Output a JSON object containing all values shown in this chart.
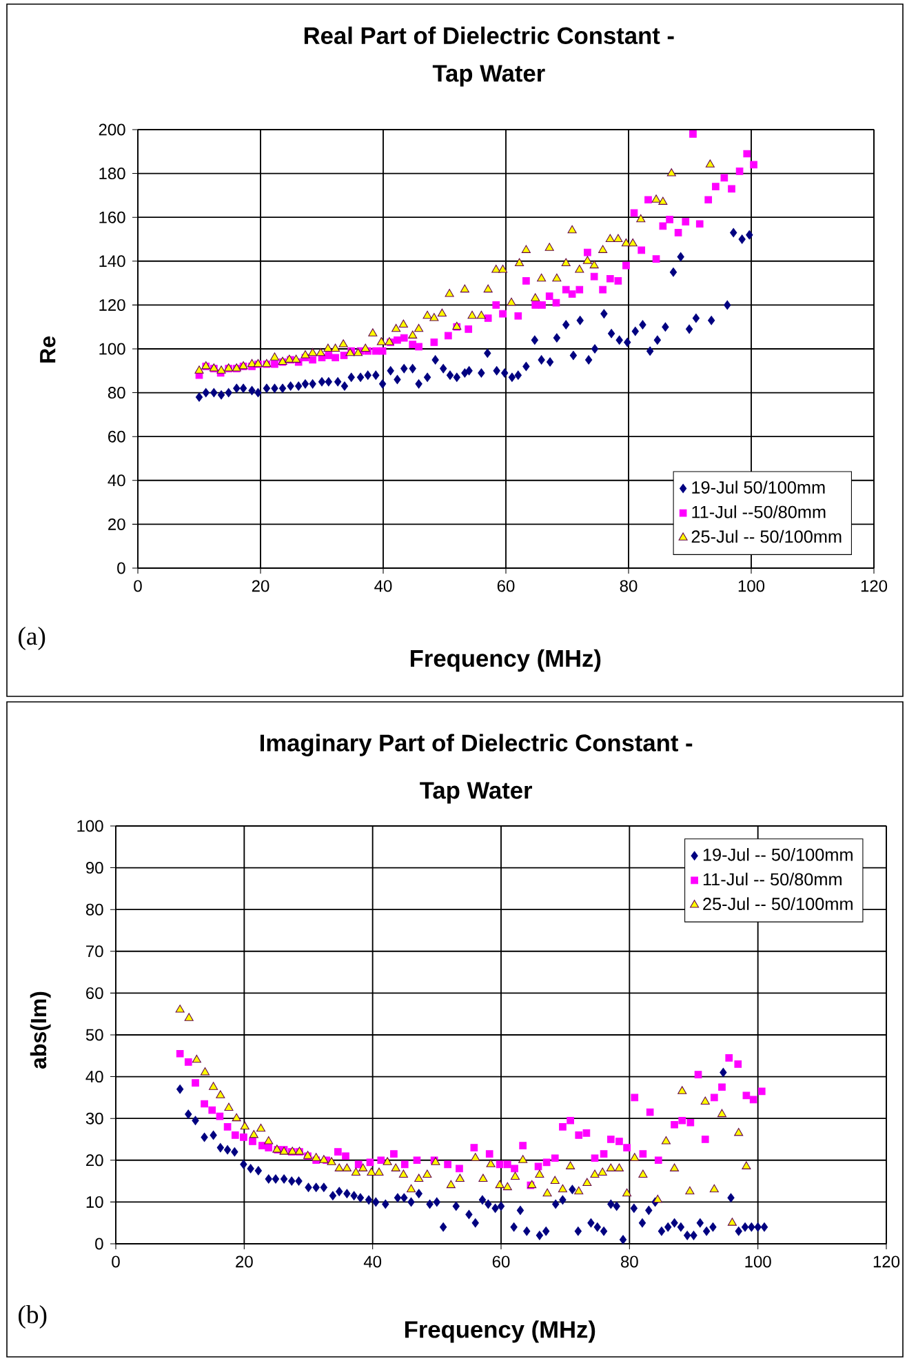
{
  "chart_data": [
    {
      "type": "scatter",
      "title": "Real Part of Dielectric Constant -",
      "subtitle": "Tap Water",
      "xlabel": "Frequency (MHz)",
      "ylabel": "Re",
      "annotations": [
        "(a)"
      ],
      "xlim": [
        0,
        120
      ],
      "xticks": [
        0,
        20,
        40,
        60,
        80,
        100,
        120
      ],
      "ylim": [
        0,
        200
      ],
      "yticks": [
        0,
        20,
        40,
        60,
        80,
        100,
        120,
        140,
        160,
        180,
        200
      ],
      "grid": true,
      "legend": "bottom right",
      "series": [
        {
          "name": "19-Jul 50/100mm",
          "color": "#000080",
          "marker": "diamond",
          "x": [
            10,
            11.1,
            12.4,
            13.6,
            14.8,
            16.1,
            17.2,
            18.6,
            19.6,
            21,
            22.3,
            23.6,
            24.9,
            26.2,
            27.3,
            28.5,
            30,
            31.1,
            32.6,
            33.7,
            34.8,
            36.3,
            37.5,
            38.8,
            39.9,
            41.2,
            42.3,
            43.4,
            44.8,
            45.8,
            47.2,
            48.5,
            49.8,
            50.9,
            52,
            53.3,
            54,
            56,
            57,
            58.5,
            59.8,
            61,
            62,
            63.3,
            64.7,
            65.8,
            67.2,
            68.3,
            69.8,
            71,
            72.1,
            73.5,
            74.5,
            76,
            77.2,
            78.5,
            79.8,
            81.1,
            82.3,
            83.5,
            84.7,
            86,
            87.3,
            88.5,
            89.9,
            91,
            93.5,
            96.1,
            97.1,
            98.5,
            99.7
          ],
          "values": [
            78,
            80,
            80,
            79,
            80,
            82,
            82,
            81,
            80,
            82,
            82,
            82,
            83,
            83,
            84,
            84,
            85,
            85,
            85,
            83,
            87,
            87,
            88,
            88,
            84,
            90,
            86,
            91,
            91,
            84,
            87,
            95,
            91,
            88,
            87,
            89,
            90,
            89,
            98,
            90,
            89,
            87,
            88,
            92,
            104,
            95,
            94,
            105,
            111,
            97,
            113,
            95,
            100,
            116,
            107,
            104,
            103,
            108,
            111,
            99,
            104,
            110,
            135,
            142,
            109,
            114,
            113,
            120,
            153,
            150,
            152
          ]
        },
        {
          "name": "11-Jul --50/80mm",
          "color": "#ff00ff",
          "marker": "square",
          "x": [
            10,
            11.1,
            12.4,
            13.5,
            14.8,
            16.1,
            17.2,
            18.6,
            19.6,
            21,
            22.3,
            23.6,
            24.9,
            26.2,
            27.3,
            28.5,
            30,
            31.1,
            32.2,
            33.6,
            34.8,
            36.3,
            37.5,
            38.8,
            39.9,
            41.2,
            42.3,
            43.4,
            44.8,
            45.8,
            48.3,
            50.6,
            52,
            53.9,
            57.1,
            58.4,
            59.5,
            62,
            63.3,
            64.8,
            65.9,
            67.1,
            68.2,
            69.8,
            70.8,
            72,
            73.3,
            74.4,
            75.8,
            77,
            78.3,
            79.6,
            80.9,
            82.1,
            83.2,
            84.5,
            85.6,
            86.7,
            88.1,
            89.3,
            90.5,
            91.6,
            93,
            94.2,
            95.6,
            96.8,
            98.1,
            99.3,
            100.4
          ],
          "values": [
            88,
            92,
            91,
            89,
            91,
            91,
            92,
            92,
            93,
            93,
            93,
            94,
            95,
            94,
            96,
            95,
            96,
            97,
            96,
            97,
            99,
            99,
            99,
            99,
            99,
            103,
            104,
            105,
            102,
            101,
            103,
            106,
            110,
            109,
            114,
            120,
            116,
            115,
            131,
            120,
            120,
            124,
            121,
            127,
            125,
            127,
            144,
            133,
            127,
            132,
            131,
            138,
            162,
            145,
            168,
            141,
            156,
            159,
            153,
            158,
            198,
            157,
            168,
            174,
            178,
            173,
            181,
            189,
            184
          ]
        },
        {
          "name": "25-Jul -- 50/100mm",
          "color": "#ffff00",
          "marker": "triangle",
          "x": [
            10,
            11.1,
            12.4,
            13.6,
            14.8,
            16.1,
            17.2,
            18.6,
            19.6,
            21,
            22.3,
            23.6,
            24.7,
            25.8,
            27.3,
            28.5,
            29.8,
            31,
            32.2,
            33.5,
            34.6,
            35.9,
            37.1,
            38.3,
            39.7,
            41,
            42.1,
            43.3,
            44.8,
            45.8,
            47.2,
            48.3,
            49.6,
            50.8,
            52,
            53.3,
            54.5,
            56,
            57.1,
            58.4,
            59.5,
            60.9,
            62.2,
            63.3,
            64.8,
            65.8,
            67.1,
            68.3,
            69.8,
            70.8,
            72,
            73.3,
            74.4,
            75.8,
            77,
            78.3,
            79.6,
            80.7,
            82,
            84.5,
            85.6,
            87,
            93.3
          ],
          "values": [
            90,
            92,
            91,
            90,
            91,
            91,
            92,
            93,
            93,
            93,
            96,
            94,
            95,
            95,
            97,
            98,
            98,
            100,
            100,
            102,
            98,
            98,
            100,
            107,
            103,
            103,
            109,
            111,
            106,
            109,
            115,
            114,
            116,
            125,
            110,
            127,
            115,
            115,
            127,
            136,
            136,
            121,
            139,
            145,
            123,
            132,
            146,
            132,
            139,
            154,
            136,
            140,
            138,
            145,
            150,
            150,
            148,
            148,
            159,
            168,
            167,
            180,
            184
          ]
        }
      ]
    },
    {
      "type": "scatter",
      "title": "Imaginary Part of Dielectric Constant -",
      "subtitle": "Tap Water",
      "xlabel": "Frequency (MHz)",
      "ylabel": "abs(Im)",
      "annotations": [
        "(b)"
      ],
      "xlim": [
        0,
        120
      ],
      "xticks": [
        0,
        20,
        40,
        60,
        80,
        100,
        120
      ],
      "ylim": [
        0,
        100
      ],
      "yticks": [
        0,
        10,
        20,
        30,
        40,
        50,
        60,
        70,
        80,
        90,
        100
      ],
      "grid": true,
      "legend": "top right",
      "series": [
        {
          "name": "19-Jul -- 50/100mm",
          "color": "#000080",
          "marker": "diamond",
          "x": [
            10,
            11.3,
            12.4,
            13.8,
            15.2,
            16.3,
            17.4,
            18.5,
            19.9,
            21,
            22.2,
            23.8,
            24.9,
            26.2,
            27.4,
            28.5,
            30,
            31.2,
            32.4,
            33.8,
            34.8,
            36,
            37.1,
            38.1,
            39.4,
            40.5,
            42,
            43.9,
            44.9,
            46,
            47.2,
            48.9,
            50,
            51,
            53,
            55,
            56,
            57.1,
            58,
            59.1,
            60,
            62,
            63,
            64,
            66,
            67,
            68.5,
            69.6,
            71.1,
            72,
            74,
            75,
            76,
            77.1,
            78,
            79,
            80.7,
            82,
            83,
            84,
            85,
            86,
            87,
            88,
            89,
            90,
            91,
            92,
            93,
            94.6,
            95.8,
            97,
            98,
            99,
            100,
            101
          ],
          "values": [
            37,
            31,
            29.5,
            25.5,
            26,
            23,
            22.5,
            22,
            19,
            18,
            17.5,
            15.5,
            15.5,
            15.5,
            15,
            15,
            13.5,
            13.5,
            13.5,
            11.5,
            12.5,
            12,
            11.5,
            11,
            10.5,
            10,
            9.5,
            11,
            11,
            10,
            12,
            9.5,
            10,
            4,
            9,
            7,
            5,
            10.5,
            9.5,
            8.5,
            9,
            4,
            8,
            3,
            2,
            3,
            9.5,
            10.5,
            13,
            3,
            5,
            4,
            3,
            9.5,
            9,
            1,
            8.5,
            5,
            8,
            10,
            3,
            4,
            5,
            4,
            2,
            2,
            5,
            3,
            4,
            41,
            11,
            3,
            4,
            4,
            4,
            4
          ]
        },
        {
          "name": "11-Jul -- 50/80mm",
          "color": "#ff00ff",
          "marker": "square",
          "x": [
            10,
            11.3,
            12.4,
            13.8,
            15,
            16.2,
            17.4,
            18.6,
            19.9,
            21.3,
            22.8,
            23.8,
            25.2,
            26.2,
            27.4,
            28.6,
            29.9,
            31.2,
            32.8,
            34.6,
            35.8,
            37.8,
            39.6,
            41.3,
            43.3,
            45,
            46.9,
            49.6,
            51.7,
            53.5,
            55.8,
            58.2,
            59.8,
            61,
            62.1,
            63.4,
            64.6,
            65.8,
            67.1,
            68.4,
            69.6,
            70.8,
            72.1,
            73.3,
            74.6,
            76,
            77.1,
            78.4,
            79.6,
            80.8,
            82.1,
            83.2,
            84.5,
            87,
            88.2,
            89.5,
            90.7,
            91.8,
            93.2,
            94.4,
            95.5,
            96.9,
            98.2,
            99.3,
            100.6
          ],
          "values": [
            45.5,
            43.5,
            38.5,
            33.5,
            32,
            30.5,
            28,
            26,
            25.5,
            24.5,
            23.5,
            23,
            22.5,
            22.5,
            22,
            22,
            21,
            20,
            20,
            22,
            21,
            19,
            19.5,
            20,
            21.5,
            19,
            20,
            20,
            19,
            18,
            23,
            21.5,
            19,
            19,
            18,
            23.5,
            14,
            18.5,
            19.5,
            20.5,
            28,
            29.5,
            26,
            26.5,
            20.5,
            21.5,
            25,
            24.5,
            23,
            35,
            21.5,
            31.5,
            20,
            28.5,
            29.5,
            29,
            40.5,
            25,
            35,
            37.5,
            44.5,
            43,
            35.5,
            34.5,
            36.5
          ]
        },
        {
          "name": "25-Jul -- 50/100mm",
          "color": "#ffff00",
          "marker": "triangle",
          "x": [
            10,
            11.4,
            12.6,
            13.9,
            15.2,
            16.3,
            17.6,
            18.8,
            20.1,
            21.5,
            22.6,
            23.8,
            25.1,
            26.2,
            27.5,
            28.6,
            29.9,
            31.2,
            32.4,
            33.6,
            34.8,
            36,
            37.4,
            38.5,
            39.8,
            41,
            42.3,
            43.6,
            44.8,
            46,
            47.2,
            48.5,
            49.8,
            52.2,
            53.6,
            56,
            57.2,
            58.4,
            59.8,
            61,
            62.2,
            63.4,
            64.8,
            66,
            67.2,
            68.4,
            69.6,
            70.8,
            72.1,
            73.4,
            74.6,
            75.8,
            77.1,
            78.4,
            79.6,
            80.8,
            82.1,
            84.4,
            85.7,
            87,
            88.2,
            89.4,
            91.8,
            93.2,
            94.4,
            96,
            97,
            98.2
          ],
          "values": [
            56,
            54,
            44,
            41,
            37.5,
            35.5,
            32.5,
            30,
            28,
            26,
            27.5,
            24.5,
            22.5,
            22,
            22,
            22,
            21,
            20.5,
            20,
            19.5,
            18,
            18,
            17,
            18,
            17,
            17,
            19.5,
            18,
            16.5,
            13,
            15.5,
            16.5,
            19.5,
            14,
            15.5,
            20.5,
            15.5,
            19,
            14,
            13.5,
            16,
            20,
            14,
            16.5,
            12,
            15,
            13,
            18.5,
            12.5,
            14.5,
            16.5,
            17,
            18,
            18,
            12,
            20.5,
            16.5,
            10.5,
            24.5,
            18,
            36.5,
            12.5,
            34,
            13,
            31,
            5,
            26.5,
            18.5
          ]
        }
      ]
    }
  ]
}
